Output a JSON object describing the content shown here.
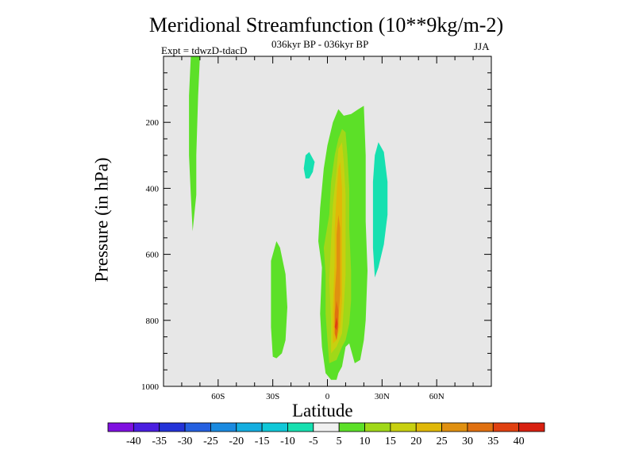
{
  "chart_data": {
    "type": "contour",
    "title": "Meridional Streamfunction (10**9kg/m-2)",
    "subtitle": "036kyr BP - 036kyr BP",
    "experiment": "Expt = tdwzD-tdacD",
    "season": "JJA",
    "xlabel": "Latitude",
    "ylabel": "Pressure (in hPa)",
    "xlim": [
      -90,
      90
    ],
    "ylim": [
      1000,
      0
    ],
    "x_ticks": [
      {
        "value": -60,
        "label": "60S"
      },
      {
        "value": -30,
        "label": "30S"
      },
      {
        "value": 0,
        "label": "0"
      },
      {
        "value": 30,
        "label": "30N"
      },
      {
        "value": 60,
        "label": "60N"
      }
    ],
    "y_ticks": [
      {
        "value": 200,
        "label": "200"
      },
      {
        "value": 400,
        "label": "400"
      },
      {
        "value": 600,
        "label": "600"
      },
      {
        "value": 800,
        "label": "800"
      },
      {
        "value": 1000,
        "label": "1000"
      }
    ],
    "background": "#e7e7e7",
    "colorbar": {
      "labels": [
        "-40",
        "-35",
        "-30",
        "-25",
        "-20",
        "-15",
        "-10",
        "-5",
        "5",
        "10",
        "15",
        "20",
        "25",
        "30",
        "35",
        "40"
      ],
      "colors": [
        "#7f10e0",
        "#4a1ee0",
        "#2433d8",
        "#2560e0",
        "#1a8ae0",
        "#14aee0",
        "#10c8d8",
        "#16e0b0",
        "#f0f0f0",
        "#5ce028",
        "#a0d818",
        "#c8d010",
        "#e0b808",
        "#e09010",
        "#e07010",
        "#e04010",
        "#d82010"
      ]
    },
    "features": [
      {
        "name": "nh-cell-5",
        "level": 5,
        "color": "#5ce028",
        "points": [
          [
            -1,
            960
          ],
          [
            -3,
            880
          ],
          [
            -4,
            780
          ],
          [
            -3,
            640
          ],
          [
            -5,
            560
          ],
          [
            -4,
            460
          ],
          [
            -2,
            340
          ],
          [
            0,
            270
          ],
          [
            3,
            200
          ],
          [
            6,
            160
          ],
          [
            9,
            180
          ],
          [
            13,
            175
          ],
          [
            17,
            160
          ],
          [
            20,
            150
          ],
          [
            21,
            300
          ],
          [
            21,
            500
          ],
          [
            22,
            650
          ],
          [
            21,
            800
          ],
          [
            20,
            860
          ],
          [
            18,
            920
          ],
          [
            15,
            930
          ],
          [
            12,
            870
          ],
          [
            10,
            880
          ],
          [
            8,
            940
          ],
          [
            6,
            960
          ],
          [
            5,
            980
          ],
          [
            2,
            980
          ]
        ]
      },
      {
        "name": "nh-cell-10",
        "level": 10,
        "color": "#a0d818",
        "points": [
          [
            1,
            930
          ],
          [
            0,
            860
          ],
          [
            -1,
            780
          ],
          [
            -1,
            660
          ],
          [
            -2,
            580
          ],
          [
            1,
            480
          ],
          [
            2,
            380
          ],
          [
            4,
            300
          ],
          [
            6,
            250
          ],
          [
            8,
            220
          ],
          [
            10,
            230
          ],
          [
            11,
            300
          ],
          [
            12,
            400
          ],
          [
            12,
            520
          ],
          [
            13,
            650
          ],
          [
            13,
            740
          ],
          [
            12,
            810
          ],
          [
            10,
            860
          ],
          [
            8,
            880
          ],
          [
            5,
            920
          ]
        ]
      },
      {
        "name": "nh-cell-15",
        "level": 15,
        "color": "#c8d010",
        "points": [
          [
            2,
            900
          ],
          [
            2,
            800
          ],
          [
            1,
            680
          ],
          [
            2,
            560
          ],
          [
            3,
            450
          ],
          [
            5,
            350
          ],
          [
            6,
            280
          ],
          [
            8,
            260
          ],
          [
            9,
            320
          ],
          [
            10,
            420
          ],
          [
            10,
            540
          ],
          [
            10,
            660
          ],
          [
            9,
            760
          ],
          [
            8,
            840
          ],
          [
            5,
            880
          ]
        ]
      },
      {
        "name": "nh-cell-20",
        "level": 20,
        "color": "#e0b808",
        "points": [
          [
            3,
            870
          ],
          [
            3,
            760
          ],
          [
            4,
            620
          ],
          [
            4,
            520
          ],
          [
            5,
            420
          ],
          [
            6,
            340
          ],
          [
            7,
            320
          ],
          [
            8,
            400
          ],
          [
            8,
            520
          ],
          [
            8,
            640
          ],
          [
            8,
            740
          ],
          [
            7,
            820
          ],
          [
            5,
            860
          ]
        ]
      },
      {
        "name": "nh-cell-25",
        "level": 25,
        "color": "#e09010",
        "points": [
          [
            4,
            820
          ],
          [
            4,
            720
          ],
          [
            5,
            640
          ],
          [
            5,
            540
          ],
          [
            6,
            480
          ],
          [
            7,
            520
          ],
          [
            7,
            620
          ],
          [
            7,
            720
          ],
          [
            6,
            800
          ]
        ]
      },
      {
        "name": "nh-cell-30",
        "level": 30,
        "color": "#e07010",
        "points": [
          [
            4,
            840
          ],
          [
            4,
            780
          ],
          [
            5,
            740
          ],
          [
            6,
            770
          ],
          [
            6,
            820
          ],
          [
            5,
            860
          ]
        ]
      },
      {
        "name": "nh-cell-35",
        "level": 35,
        "color": "#e04010",
        "points": [
          [
            4,
            820
          ],
          [
            5,
            790
          ],
          [
            5.6,
            810
          ],
          [
            5,
            830
          ]
        ]
      },
      {
        "name": "south-cell-5",
        "level": 5,
        "color": "#5ce028",
        "points": [
          [
            -30,
            910
          ],
          [
            -31,
            820
          ],
          [
            -31,
            720
          ],
          [
            -31,
            620
          ],
          [
            -28,
            560
          ],
          [
            -26,
            580
          ],
          [
            -23,
            660
          ],
          [
            -22,
            760
          ],
          [
            -23,
            860
          ],
          [
            -25,
            900
          ],
          [
            -28,
            915
          ]
        ]
      },
      {
        "name": "south-pole-cell-5",
        "level": 5,
        "color": "#5ce028",
        "points": [
          [
            -75,
            0
          ],
          [
            -70,
            0
          ],
          [
            -71,
            120
          ],
          [
            -72,
            300
          ],
          [
            -72,
            420
          ],
          [
            -74,
            530
          ],
          [
            -75,
            420
          ],
          [
            -76,
            300
          ],
          [
            -76,
            120
          ]
        ]
      },
      {
        "name": "north-cell-neg5",
        "level": -5,
        "color": "#16e0b0",
        "points": [
          [
            26,
            670
          ],
          [
            25,
            580
          ],
          [
            25,
            480
          ],
          [
            25,
            380
          ],
          [
            26,
            300
          ],
          [
            28,
            260
          ],
          [
            31,
            290
          ],
          [
            33,
            380
          ],
          [
            33,
            480
          ],
          [
            31,
            570
          ],
          [
            28,
            640
          ]
        ]
      },
      {
        "name": "small-cell-neg5",
        "level": -5,
        "color": "#16e0b0",
        "points": [
          [
            -12,
            370
          ],
          [
            -13,
            340
          ],
          [
            -12,
            300
          ],
          [
            -10,
            290
          ],
          [
            -7,
            320
          ],
          [
            -8,
            350
          ],
          [
            -10,
            370
          ]
        ]
      }
    ]
  }
}
